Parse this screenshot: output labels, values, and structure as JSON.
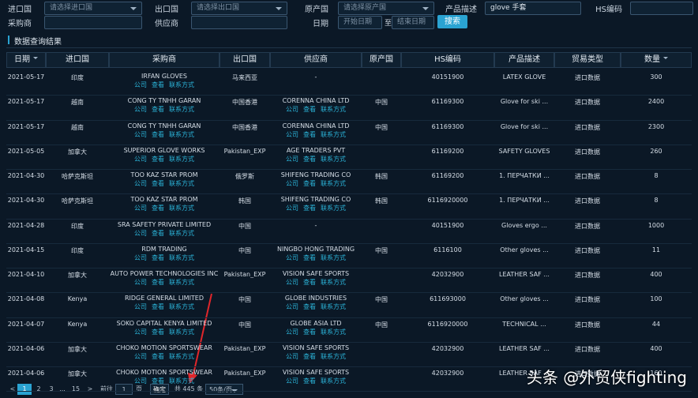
{
  "filters": {
    "import_country": {
      "label": "进口国",
      "placeholder": "请选择进口国"
    },
    "supplier_country": {
      "label": "出口国",
      "placeholder": "请选择出口国"
    },
    "origin": {
      "label": "原产国",
      "placeholder": "请选择原产国"
    },
    "product": {
      "label": "产品描述",
      "value": "glove 手套"
    },
    "hs": {
      "label": "HS编码"
    },
    "buyer": {
      "label": "采购商"
    },
    "supplier": {
      "label": "供应商"
    },
    "date": {
      "label": "日期",
      "start": "开始日期",
      "sep": "至",
      "end": "结束日期"
    },
    "search": "搜索"
  },
  "section_title": "数据查询结果",
  "table": {
    "headers": [
      "日期",
      "进口国",
      "采购商",
      "出口国",
      "供应商",
      "原产国",
      "HS编码",
      "产品描述",
      "贸易类型",
      "数量"
    ],
    "row_links": [
      "公司",
      "查看",
      "联系方式"
    ],
    "rows": [
      [
        "2021-05-17",
        "印度",
        "IRFAN GLOVES",
        "马来西亚",
        "-",
        null,
        "40151900",
        "LATEX GLOVE",
        "进口数据",
        "300"
      ],
      [
        "2021-05-17",
        "越南",
        "CONG TY TNHH GARAN",
        "中国香港",
        "CORENNA CHINA LTD",
        "中国",
        "61169300",
        "Glove for ski ...",
        "进口数据",
        "2400"
      ],
      [
        "2021-05-17",
        "越南",
        "CONG TY TNHH GARAN",
        "中国香港",
        "CORENNA CHINA LTD",
        "中国",
        "61169300",
        "Glove for ski ...",
        "进口数据",
        "2300"
      ],
      [
        "2021-05-05",
        "加拿大",
        "SUPERIOR GLOVE WORKS",
        "Pakistan_EXP",
        "AGE TRADERS PVT",
        null,
        "61169200",
        "SAFETY GLOVES",
        "进口数据",
        "260"
      ],
      [
        "2021-04-30",
        "哈萨克斯坦",
        "TOO KAZ STAR PROM",
        "俄罗斯",
        "SHIFENG TRADING CO",
        "韩国",
        "61169200",
        "1. ПЕРЧАТКИ ...",
        "进口数据",
        "8"
      ],
      [
        "2021-04-30",
        "哈萨克斯坦",
        "TOO KAZ STAR PROM",
        "韩国",
        "SHIFENG TRADING CO",
        "韩国",
        "6116920000",
        "1. ПЕРЧАТКИ ...",
        "进口数据",
        "8"
      ],
      [
        "2021-04-28",
        "印度",
        "SRA SAFETY PRIVATE LIMITED",
        "中国",
        "-",
        null,
        "40151900",
        "Gloves ergo ...",
        "进口数据",
        "1000"
      ],
      [
        "2021-04-15",
        "印度",
        "RDM TRADING",
        "中国",
        "NINGBO HONG TRADING",
        "中国",
        "6116100",
        "Other gloves ...",
        "进口数据",
        "11"
      ],
      [
        "2021-04-10",
        "加拿大",
        "AUTO POWER TECHNOLOGIES INC",
        "Pakistan_EXP",
        "VISION SAFE SPORTS",
        null,
        "42032900",
        "LEATHER SAF ...",
        "进口数据",
        "400"
      ],
      [
        "2021-04-08",
        "Kenya",
        "RIDGE GENERAL LIMITED",
        "中国",
        "GLOBE INDUSTRIES",
        "中国",
        "611693000",
        "Other gloves ...",
        "进口数据",
        "100"
      ],
      [
        "2021-04-07",
        "Kenya",
        "SOKO CAPITAL KENYA LIMITED",
        "中国",
        "GLOBE ASIA LTD",
        "中国",
        "6116920000",
        "TECHNICAL ...",
        "进口数据",
        "44"
      ],
      [
        "2021-04-06",
        "加拿大",
        "CHOKO MOTION SPORTSWEAR",
        "Pakistan_EXP",
        "VISION SAFE SPORTS",
        null,
        "42032900",
        "LEATHER SAF ...",
        "进口数据",
        "400"
      ],
      [
        "2021-04-06",
        "加拿大",
        "CHOKO MOTION SPORTSWEAR",
        "Pakistan_EXP",
        "VISION SAFE SPORTS",
        null,
        "42032900",
        "LEATHER SAF ...",
        "进口数据",
        "160"
      ]
    ]
  },
  "pagination": {
    "prev": "<",
    "pages": [
      "1",
      "2",
      "3",
      "...",
      "15"
    ],
    "next": ">",
    "goto": "前往",
    "page_input": "1",
    "page_unit": "页",
    "confirm": "确定",
    "total": "共 445 条",
    "page_size": "50条/页"
  },
  "watermark": "头条 @外贸侠fighting"
}
